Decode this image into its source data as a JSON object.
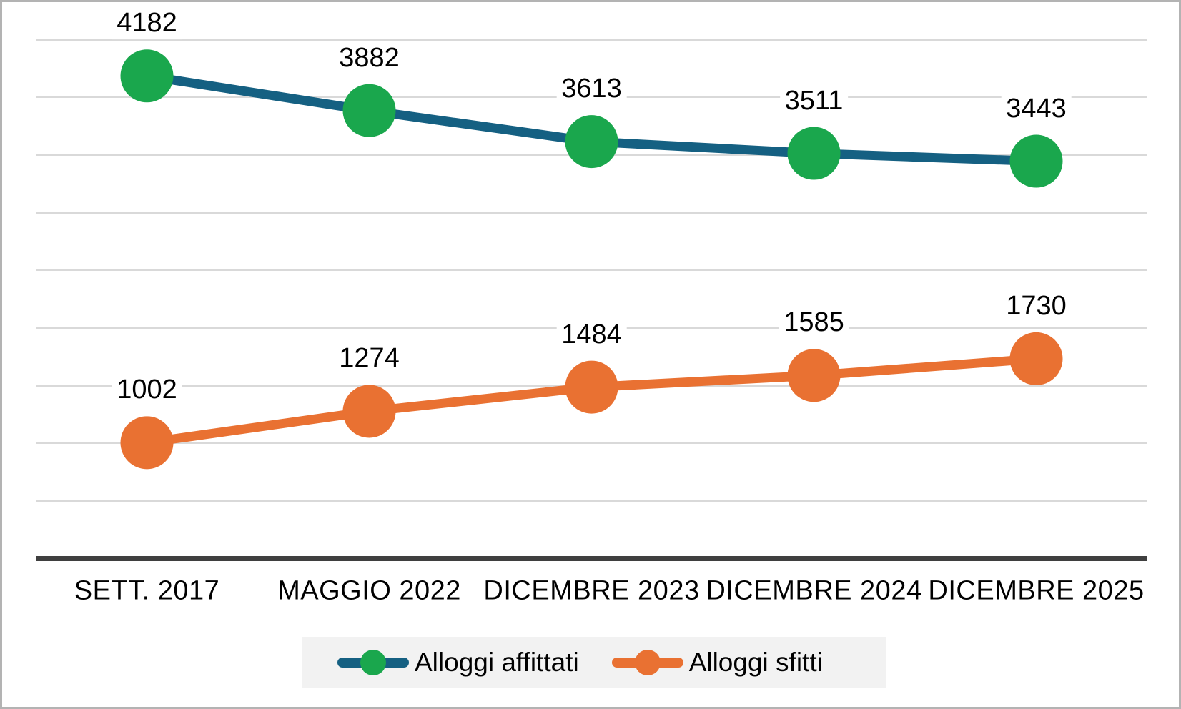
{
  "chart_data": {
    "type": "line",
    "categories": [
      "SETT. 2017",
      "MAGGIO 2022",
      "DICEMBRE 2023",
      "DICEMBRE 2024",
      "DICEMBRE 2025"
    ],
    "series": [
      {
        "name": "Alloggi affittati",
        "values": [
          4182,
          3882,
          3613,
          3511,
          3443
        ],
        "line_color": "#156082",
        "marker_color": "#1AA74D"
      },
      {
        "name": "Alloggi sfitti",
        "values": [
          1002,
          1274,
          1484,
          1585,
          1730
        ],
        "line_color": "#E97132",
        "marker_color": "#E97132"
      }
    ],
    "title": "",
    "xlabel": "",
    "ylabel": "",
    "ylim": [
      0,
      4500
    ],
    "gridline_step": 500,
    "grid": true,
    "y_tick_labels_shown": false,
    "data_labels": true,
    "legend_position": "bottom"
  },
  "colors": {
    "background": "#FFFFFF",
    "grid": "#D9D9D9",
    "axis": "#3F3F3F",
    "text": "#000000",
    "legend_bg": "#F2F2F2",
    "frame_border": "#B3B3B3"
  }
}
